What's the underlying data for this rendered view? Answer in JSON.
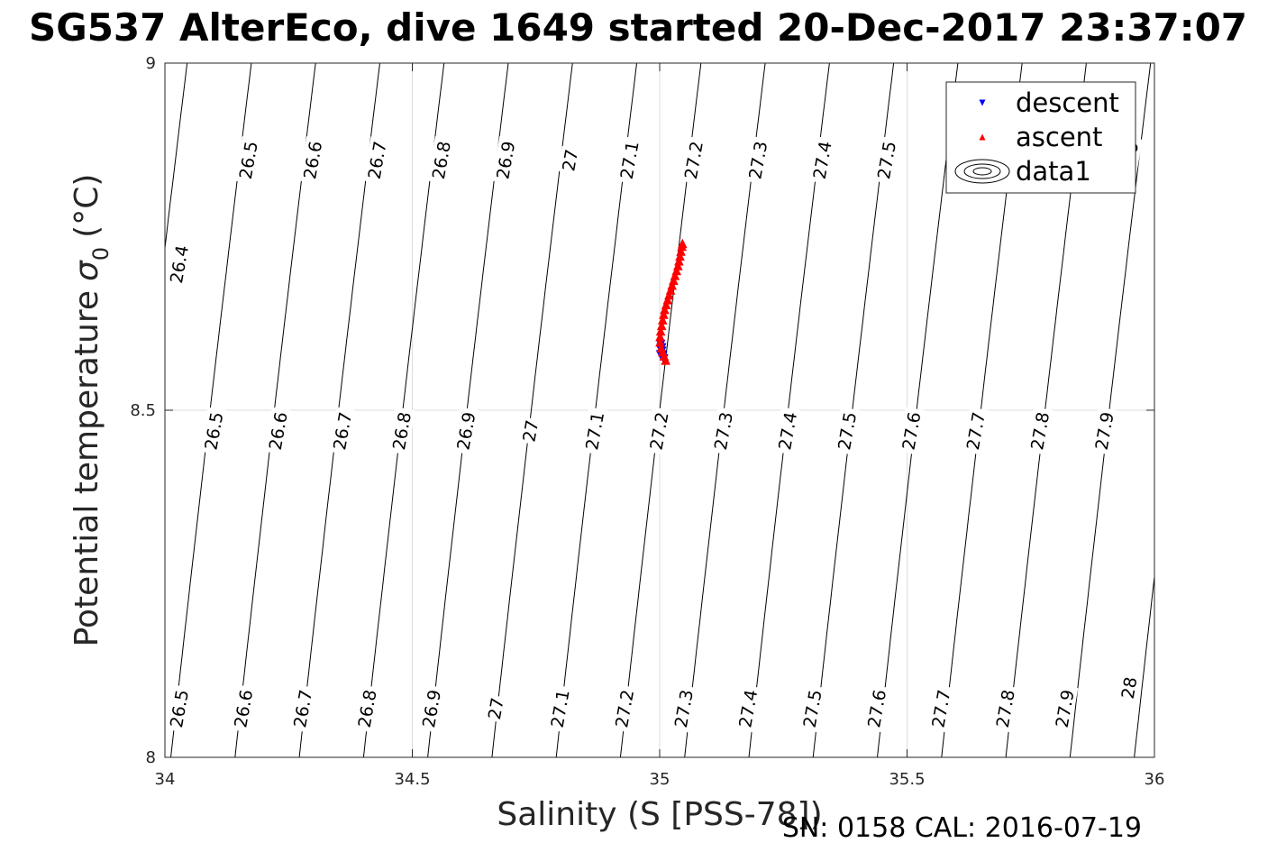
{
  "chart_data": {
    "type": "scatter",
    "title": "SG537 AlterEco, dive 1649 started 20-Dec-2017 23:37:07",
    "xlabel": "Salinity (S [PSS-78])",
    "ylabel": "Potential temperature",
    "ylabel_symbol": "σ",
    "ylabel_subscript": "0",
    "ylabel_unit": "(°C)",
    "xlim": [
      34,
      36
    ],
    "ylim": [
      8,
      9
    ],
    "xticks": [
      "34",
      "34.5",
      "35",
      "35.5",
      "36"
    ],
    "xtick_values": [
      34,
      34.5,
      35,
      35.5,
      36
    ],
    "yticks": [
      "8",
      "8.5",
      "9"
    ],
    "ytick_values": [
      8,
      8.5,
      9
    ],
    "grid": true,
    "legend_position": "top-right",
    "footer": "SN: 0158  CAL: 2016-07-19",
    "contours": {
      "levels": [
        26.4,
        26.5,
        26.6,
        26.7,
        26.8,
        26.9,
        27.0,
        27.1,
        27.2,
        27.3,
        27.4,
        27.5,
        27.6,
        27.7,
        27.8,
        27.9,
        28.0
      ],
      "labels": [
        {
          "text": "26.4",
          "x": 34.03,
          "y": 8.71
        },
        {
          "text": "26.5",
          "x": 34.17,
          "y": 8.86
        },
        {
          "text": "26.6",
          "x": 34.3,
          "y": 8.86
        },
        {
          "text": "26.7",
          "x": 34.43,
          "y": 8.86
        },
        {
          "text": "26.8",
          "x": 34.56,
          "y": 8.86
        },
        {
          "text": "26.9",
          "x": 34.69,
          "y": 8.86
        },
        {
          "text": "27",
          "x": 34.82,
          "y": 8.86
        },
        {
          "text": "27.1",
          "x": 34.94,
          "y": 8.86
        },
        {
          "text": "27.2",
          "x": 35.07,
          "y": 8.86
        },
        {
          "text": "27.3",
          "x": 35.2,
          "y": 8.86
        },
        {
          "text": "27.4",
          "x": 35.33,
          "y": 8.86
        },
        {
          "text": "27.5",
          "x": 35.46,
          "y": 8.86
        },
        {
          "text": "27.9",
          "x": 35.95,
          "y": 8.86
        },
        {
          "text": "26.5",
          "x": 34.1,
          "y": 8.47
        },
        {
          "text": "26.6",
          "x": 34.23,
          "y": 8.47
        },
        {
          "text": "26.7",
          "x": 34.36,
          "y": 8.47
        },
        {
          "text": "26.8",
          "x": 34.48,
          "y": 8.47
        },
        {
          "text": "26.9",
          "x": 34.61,
          "y": 8.47
        },
        {
          "text": "27",
          "x": 34.74,
          "y": 8.47
        },
        {
          "text": "27.1",
          "x": 34.87,
          "y": 8.47
        },
        {
          "text": "27.2",
          "x": 35.0,
          "y": 8.47
        },
        {
          "text": "27.3",
          "x": 35.13,
          "y": 8.47
        },
        {
          "text": "27.4",
          "x": 35.26,
          "y": 8.47
        },
        {
          "text": "27.5",
          "x": 35.38,
          "y": 8.47
        },
        {
          "text": "27.6",
          "x": 35.51,
          "y": 8.47
        },
        {
          "text": "27.7",
          "x": 35.64,
          "y": 8.47
        },
        {
          "text": "27.8",
          "x": 35.77,
          "y": 8.47
        },
        {
          "text": "27.9",
          "x": 35.9,
          "y": 8.47
        },
        {
          "text": "26.5",
          "x": 34.03,
          "y": 8.07
        },
        {
          "text": "26.6",
          "x": 34.16,
          "y": 8.07
        },
        {
          "text": "26.7",
          "x": 34.28,
          "y": 8.07
        },
        {
          "text": "26.8",
          "x": 34.41,
          "y": 8.07
        },
        {
          "text": "26.9",
          "x": 34.54,
          "y": 8.07
        },
        {
          "text": "27",
          "x": 34.67,
          "y": 8.07
        },
        {
          "text": "27.1",
          "x": 34.8,
          "y": 8.07
        },
        {
          "text": "27.2",
          "x": 34.93,
          "y": 8.07
        },
        {
          "text": "27.3",
          "x": 35.05,
          "y": 8.07
        },
        {
          "text": "27.4",
          "x": 35.18,
          "y": 8.07
        },
        {
          "text": "27.5",
          "x": 35.31,
          "y": 8.07
        },
        {
          "text": "27.6",
          "x": 35.44,
          "y": 8.07
        },
        {
          "text": "27.7",
          "x": 35.57,
          "y": 8.07
        },
        {
          "text": "27.8",
          "x": 35.7,
          "y": 8.07
        },
        {
          "text": "27.9",
          "x": 35.82,
          "y": 8.07
        },
        {
          "text": "28",
          "x": 35.95,
          "y": 8.1
        }
      ]
    },
    "series": [
      {
        "name": "descent",
        "marker": "triangle-down",
        "color": "#0000ff",
        "x": [
          35.002,
          35.003,
          35.004,
          35.005,
          35.006,
          35.008,
          35.004,
          35.002
        ],
        "y": [
          8.595,
          8.59,
          8.585,
          8.58,
          8.578,
          8.574,
          8.59,
          8.58
        ]
      },
      {
        "name": "ascent",
        "marker": "triangle-up",
        "color": "#ff0000",
        "x": [
          35.012,
          35.009,
          35.006,
          35.003,
          35.001,
          35.001,
          35.002,
          35.004,
          35.006,
          35.008,
          35.01,
          35.013,
          35.016,
          35.019,
          35.022,
          35.025,
          35.028,
          35.031,
          35.034,
          35.037,
          35.039,
          35.041,
          35.043,
          35.045,
          35.046
        ],
        "y": [
          8.572,
          8.578,
          8.584,
          8.59,
          8.598,
          8.606,
          8.614,
          8.622,
          8.63,
          8.638,
          8.645,
          8.652,
          8.659,
          8.666,
          8.673,
          8.68,
          8.687,
          8.694,
          8.701,
          8.708,
          8.715,
          8.722,
          8.729,
          8.736,
          8.74
        ]
      },
      {
        "name": "data1",
        "marker": "contour",
        "color": "#000000"
      }
    ]
  }
}
